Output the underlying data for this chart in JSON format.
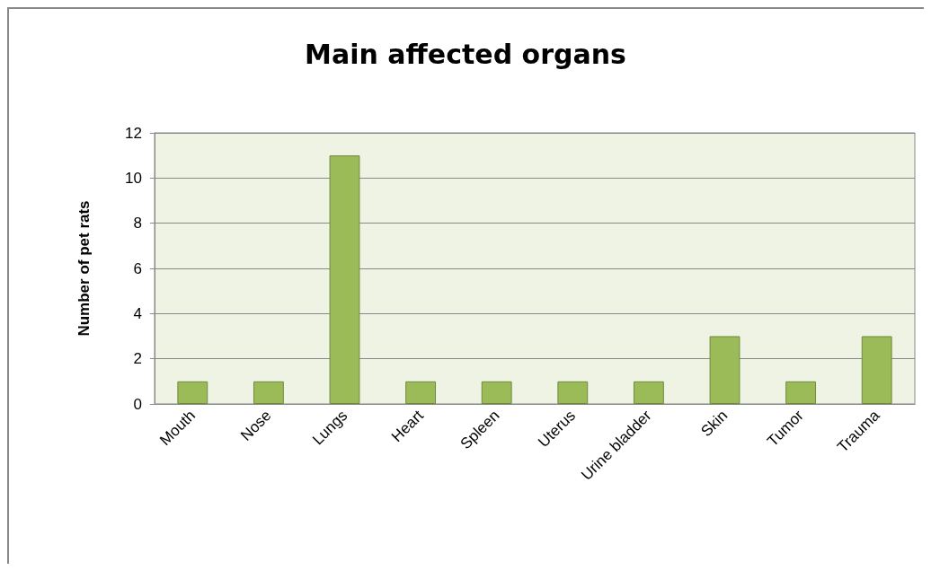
{
  "chart_data": {
    "type": "bar",
    "title": "Main affected organs",
    "ylabel": "Number of pet rats",
    "categories": [
      "Mouth",
      "Nose",
      "Lungs",
      "Heart",
      "Spleen",
      "Uterus",
      "Urine bladder",
      "Skin",
      "Tumor",
      "Trauma"
    ],
    "values": [
      1,
      1,
      11,
      1,
      1,
      1,
      1,
      3,
      1,
      3
    ],
    "color": "#9bbb59",
    "ylim": [
      0,
      12
    ],
    "yticks": [
      0,
      2,
      4,
      6,
      8,
      10,
      12
    ],
    "grid": "y"
  }
}
